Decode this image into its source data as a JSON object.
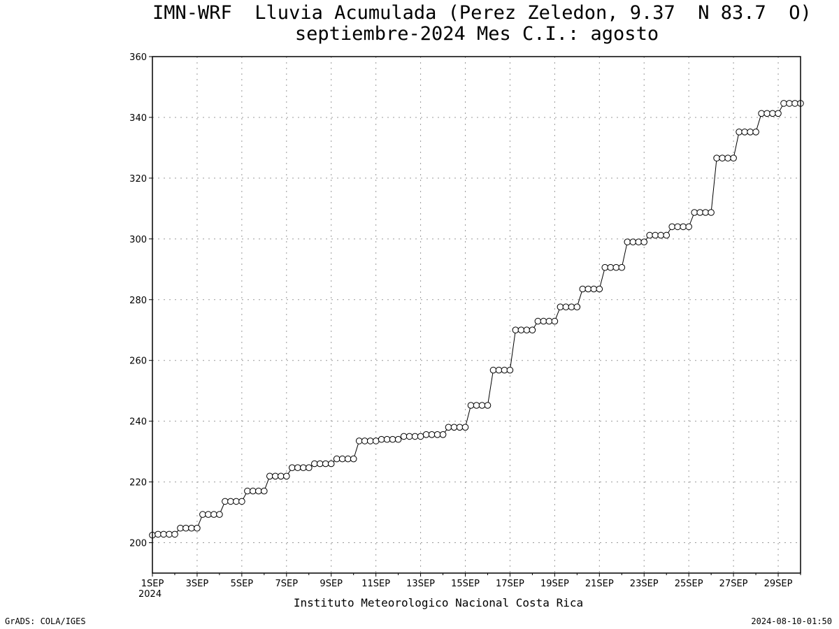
{
  "chart_data": {
    "type": "line",
    "title": "IMN-WRF  Lluvia Acumulada (Perez Zeledon, 9.37  N 83.7  O)",
    "subtitle": "septiembre-2024 Mes C.I.: agosto",
    "xlabel": "",
    "ylabel": "",
    "ylim": [
      190,
      360
    ],
    "yticks": [
      200,
      220,
      240,
      260,
      280,
      300,
      320,
      340,
      360
    ],
    "xticks": [
      "1SEP",
      "3SEP",
      "5SEP",
      "7SEP",
      "9SEP",
      "11SEP",
      "13SEP",
      "15SEP",
      "17SEP",
      "19SEP",
      "21SEP",
      "23SEP",
      "25SEP",
      "27SEP",
      "29SEP"
    ],
    "x_start_year": "2024",
    "x_range_days": [
      1,
      30
    ],
    "grid": true,
    "marker": "open-circle",
    "series": [
      {
        "values": [
          202.5,
          202.8,
          202.8,
          202.8,
          202.8,
          204.8,
          204.8,
          204.8,
          204.8,
          209.3,
          209.3,
          209.3,
          209.3,
          213.6,
          213.6,
          213.6,
          213.6,
          217.0,
          217.0,
          217.0,
          217.0,
          221.9,
          221.9,
          221.9,
          221.9,
          224.7,
          224.7,
          224.7,
          224.7,
          226.0,
          226.0,
          226.0,
          226.0,
          227.6,
          227.6,
          227.6,
          227.6,
          233.5,
          233.5,
          233.5,
          233.5,
          234.0,
          234.0,
          234.0,
          234.0,
          235.0,
          235.0,
          235.0,
          235.0,
          235.6,
          235.6,
          235.6,
          235.6,
          238.0,
          238.0,
          238.0,
          238.0,
          245.2,
          245.2,
          245.2,
          245.2,
          256.8,
          256.8,
          256.8,
          256.8,
          270.0,
          270.0,
          270.0,
          270.0,
          272.9,
          272.9,
          272.9,
          272.9,
          277.6,
          277.6,
          277.6,
          277.6,
          283.5,
          283.5,
          283.5,
          283.5,
          290.6,
          290.6,
          290.6,
          290.6,
          299.0,
          299.0,
          299.0,
          299.0,
          301.2,
          301.2,
          301.2,
          301.2,
          304.0,
          304.0,
          304.0,
          304.0,
          308.7,
          308.7,
          308.7,
          308.7,
          326.6,
          326.6,
          326.6,
          326.6,
          335.2,
          335.2,
          335.2,
          335.2,
          341.3,
          341.3,
          341.3,
          341.3,
          344.6,
          344.6,
          344.6,
          344.6
        ]
      }
    ]
  },
  "footer": {
    "institution": "Instituto Meteorologico Nacional Costa Rica",
    "credit": "GrADS: COLA/IGES",
    "timestamp": "2024-08-10-01:50"
  }
}
